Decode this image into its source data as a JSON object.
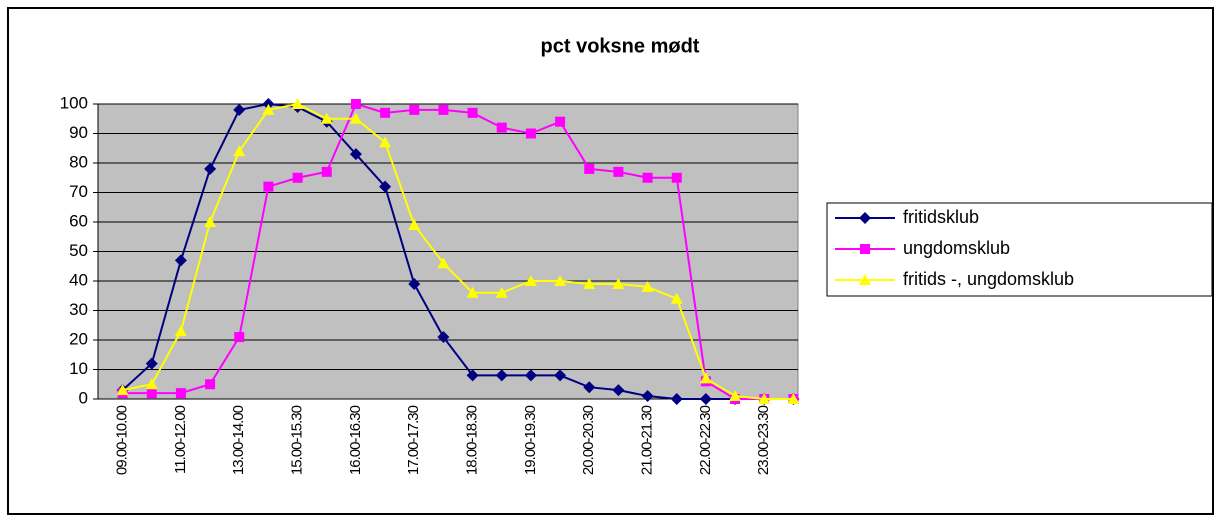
{
  "chart_data": {
    "type": "line",
    "title": "pct voksne mødt",
    "categories": [
      "09.00-10.00",
      null,
      "11.00-12.00",
      null,
      "13.00-14.00",
      null,
      "15.00-15.30",
      null,
      "16.00-16.30",
      null,
      "17.00-17.30",
      null,
      "18.00-18.30",
      null,
      "19.00-19.30",
      null,
      "20.00-20.30",
      null,
      "21.00-21.30",
      null,
      "22.00-22.30",
      null,
      "23.00-23.30",
      null
    ],
    "series": [
      {
        "name": "fritidsklub",
        "color": "#000080",
        "marker": "diamond",
        "values": [
          3,
          12,
          47,
          78,
          98,
          100,
          99,
          94,
          83,
          72,
          39,
          21,
          8,
          8,
          8,
          8,
          4,
          3,
          1,
          0,
          0,
          0,
          0,
          0
        ]
      },
      {
        "name": "ungdomsklub",
        "color": "#ff00ff",
        "marker": "square",
        "values": [
          2,
          2,
          2,
          5,
          21,
          72,
          75,
          77,
          100,
          97,
          98,
          98,
          97,
          92,
          90,
          94,
          78,
          77,
          75,
          75,
          6,
          0,
          0,
          0
        ]
      },
      {
        "name": "fritids -, ungdomsklub",
        "color": "#ffff00",
        "marker": "triangle",
        "values": [
          3,
          5,
          23,
          60,
          84,
          98,
          100,
          95,
          95,
          87,
          59,
          46,
          36,
          36,
          40,
          40,
          39,
          39,
          38,
          34,
          7,
          1,
          0,
          0
        ]
      }
    ],
    "ylim": [
      0,
      100
    ],
    "yticks": [
      0,
      10,
      20,
      30,
      40,
      50,
      60,
      70,
      80,
      90,
      100
    ],
    "grid": true,
    "legend": "right"
  }
}
